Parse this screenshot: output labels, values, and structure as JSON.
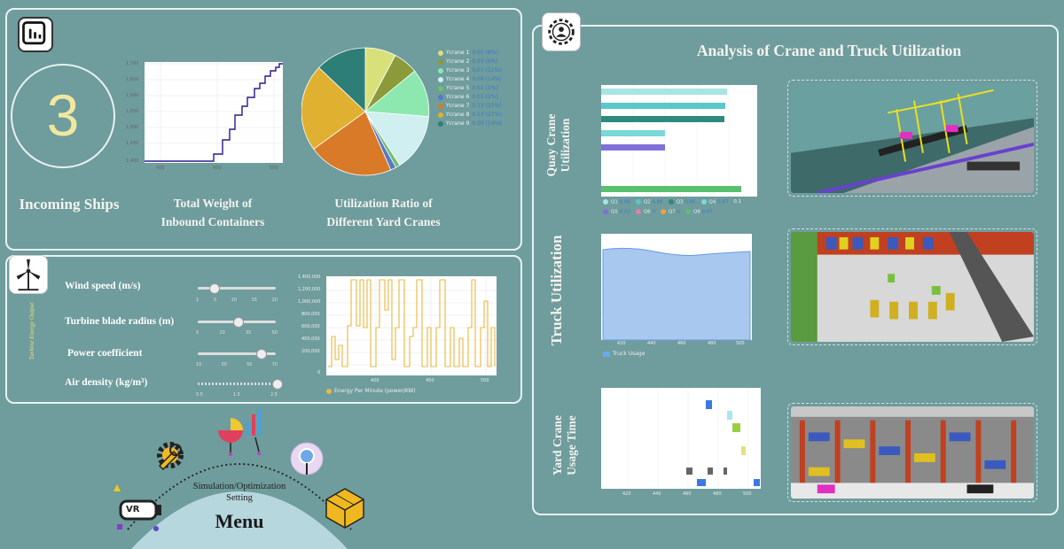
{
  "left_top": {
    "incoming_ships_count": "3",
    "incoming_ships_label": "Incoming Ships",
    "weight_label_line1": "Total Weight of",
    "weight_label_line2": "Inbound Containers",
    "utilization_label_line1": "Utilization Ratio of",
    "utilization_label_line2": "Different Yard Cranes",
    "weight_chart": {
      "y_ticks": [
        "1,700",
        "1,650",
        "1,600",
        "1,550",
        "1,500",
        "1,450",
        "1,400"
      ],
      "x_ticks": [
        "400",
        "450",
        "500"
      ]
    },
    "yard_cranes": [
      {
        "name": "Ycrane 1",
        "pct": "0.05 (8%)",
        "color": "#d8e07a"
      },
      {
        "name": "Ycrane 2",
        "pct": "0.03 (6%)",
        "color": "#8c9a3a"
      },
      {
        "name": "Ycrane 3",
        "pct": "0.07 (11%)",
        "color": "#8de8b0"
      },
      {
        "name": "Ycrane 4",
        "pct": "0.09 (14%)",
        "color": "#cfeff0"
      },
      {
        "name": "Ycrane 5",
        "pct": "0.01 (1%)",
        "color": "#6ec06e"
      },
      {
        "name": "Ycrane 6",
        "pct": "0.01 (2%)",
        "color": "#5878c8"
      },
      {
        "name": "Ycrane 7",
        "pct": "0.13 (22%)",
        "color": "#d87a28"
      },
      {
        "name": "Ycrane 8",
        "pct": "0.13 (22%)",
        "color": "#e0b030"
      },
      {
        "name": "Ycrane 9",
        "pct": "0.09 (14%)",
        "color": "#2e7e78"
      }
    ]
  },
  "wind": {
    "vertical_label": "Turbine Energy Output",
    "sliders": [
      {
        "label": "Wind speed (m/s)",
        "ticks": [
          "1",
          "5",
          "10",
          "15",
          "20"
        ],
        "value": 0.2
      },
      {
        "label": "Turbine blade radius (m)",
        "ticks": [
          "5",
          "20",
          "35",
          "50"
        ],
        "value": 0.5
      },
      {
        "label": "Power coefficient",
        "ticks": [
          "10",
          "30",
          "50",
          "70"
        ],
        "value": 0.78
      },
      {
        "label": "Air density (kg/m³)",
        "ticks": [
          "0.5",
          "1.5",
          "2.5"
        ],
        "value": 0.97
      }
    ],
    "chart": {
      "y_ticks": [
        "1,400,000",
        "1,200,000",
        "1,000,000",
        "800,000",
        "600,000",
        "400,000",
        "200,000",
        "0"
      ],
      "x_ticks": [
        "400",
        "450",
        "500"
      ],
      "legend": "Energy Per Minute (power/KW)"
    }
  },
  "menu": {
    "title": "Menu",
    "subtitle_line1": "Simulation/Optimization",
    "subtitle_line2": "Setting",
    "vr_label": "VR"
  },
  "right": {
    "title": "Analysis of Crane and Truck Utilization",
    "quay_label_line1": "Quay Crane",
    "quay_label_line2": "Utilization",
    "truck_label": "Truck Utilization",
    "yard_label_line1": "Yard Crane",
    "yard_label_line2": "Usage Time",
    "quay_legend": [
      {
        "name": "Q1",
        "val": "0.86",
        "color": "#a8e4e4"
      },
      {
        "name": "Q2",
        "val": "0.88",
        "color": "#5ac8c8"
      },
      {
        "name": "Q3",
        "val": "0.86",
        "color": "#2e8a7e"
      },
      {
        "name": "Q4",
        "val": "0.47",
        "color": "#7ad8d8"
      },
      {
        "name": "Q5",
        "val": "0.42",
        "color": "#8070d8"
      },
      {
        "name": "Q6",
        "val": "0",
        "color": "#e080b0"
      },
      {
        "name": "Q7",
        "val": "0",
        "color": "#f0a040"
      },
      {
        "name": "Q8",
        "val": "0.97",
        "color": "#5ac070"
      }
    ],
    "quay_extra_tick": "0.1",
    "truck_chart": {
      "x_ticks": [
        "420",
        "440",
        "460",
        "480",
        "500"
      ],
      "legend": "Truck Usage"
    },
    "yard_chart": {
      "x_ticks": [
        "420",
        "440",
        "460",
        "480",
        "500"
      ]
    }
  }
}
